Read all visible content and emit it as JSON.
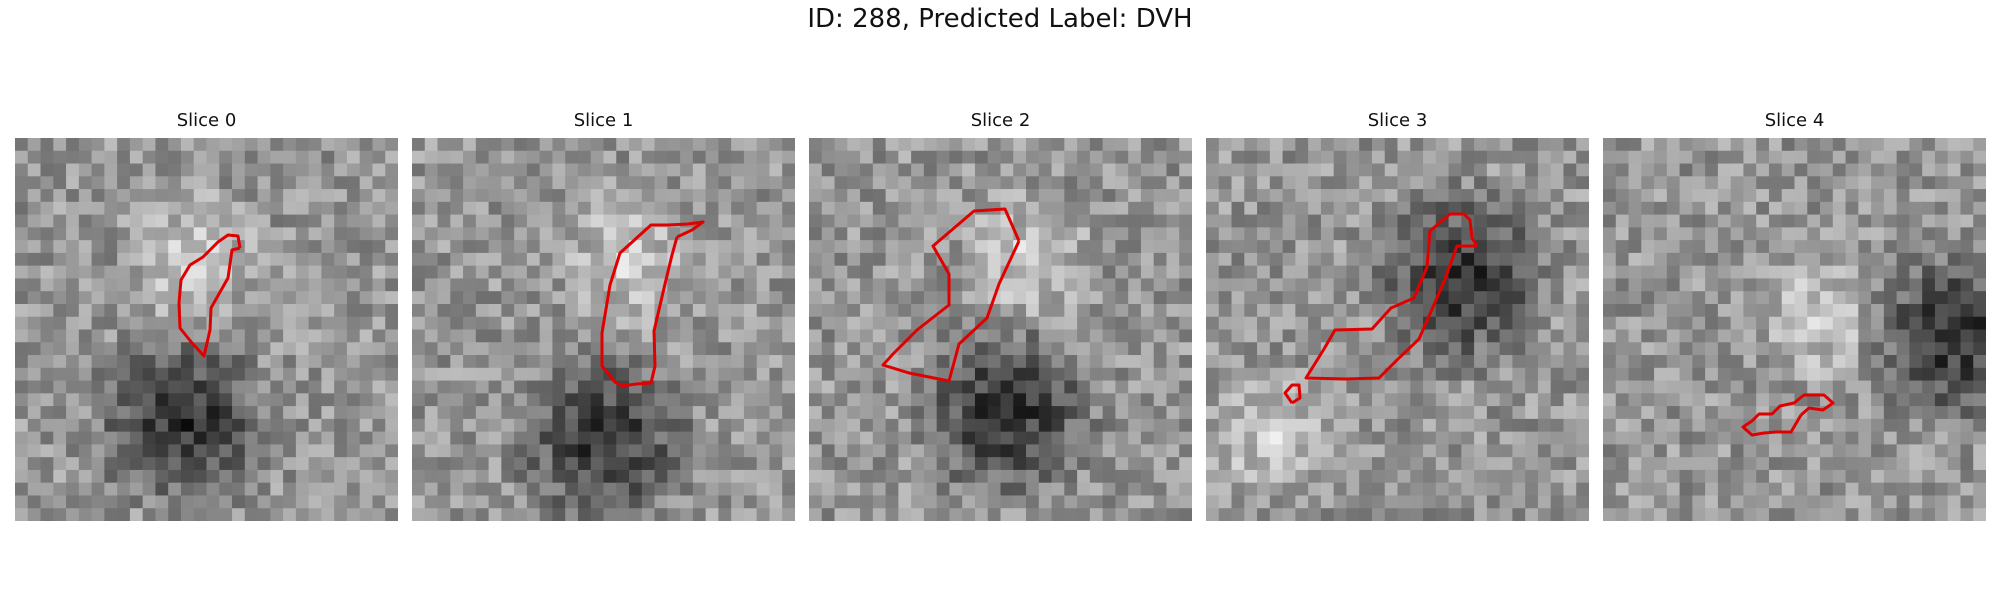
{
  "figure": {
    "title": "ID: 288, Predicted Label: DVH",
    "contour_color": "#e00000"
  },
  "slices": [
    {
      "label": "Slice 0",
      "dark_blob": [
        0.42,
        0.72
      ],
      "bright_band": [
        0.45,
        0.3
      ]
    },
    {
      "label": "Slice 1",
      "dark_blob": [
        0.48,
        0.77
      ],
      "bright_band": [
        0.55,
        0.3
      ]
    },
    {
      "label": "Slice 2",
      "dark_blob": [
        0.5,
        0.7
      ],
      "bright_band": [
        0.55,
        0.3
      ]
    },
    {
      "label": "Slice 3",
      "dark_blob": [
        0.65,
        0.35
      ],
      "bright_band": [
        0.15,
        0.75
      ]
    },
    {
      "label": "Slice 4",
      "dark_blob": [
        0.9,
        0.5
      ],
      "bright_band": [
        0.55,
        0.45
      ]
    }
  ]
}
